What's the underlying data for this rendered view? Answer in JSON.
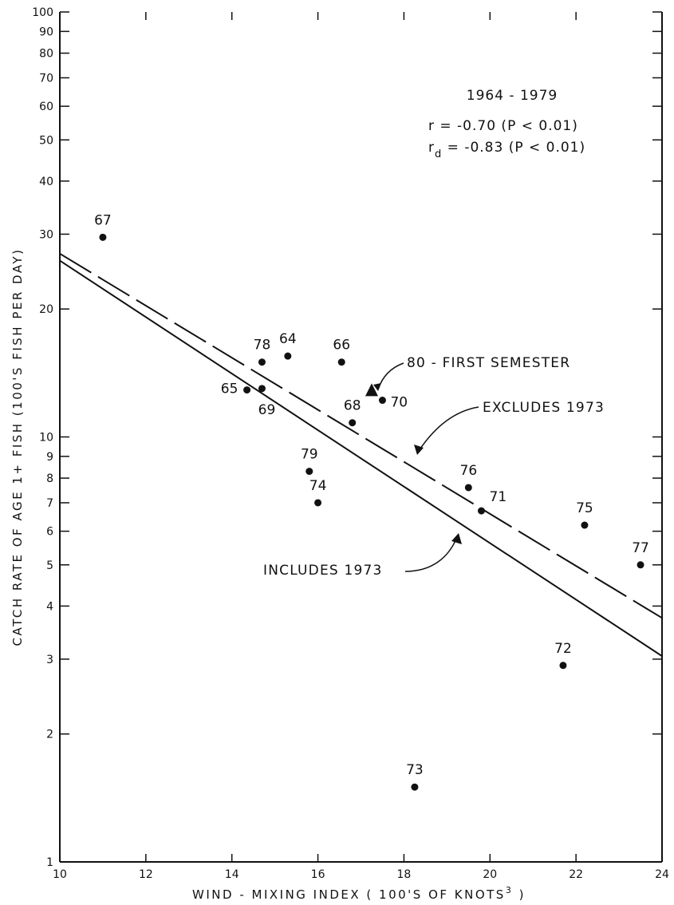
{
  "chart_data": {
    "type": "scatter",
    "title": "1964 - 1979",
    "stats": {
      "r": "r = -0.70  (P < 0.01)",
      "rd_prefix": "r",
      "rd_sub": "d",
      "rd_rest": " = -0.83  (P < 0.01)"
    },
    "xlabel": "WIND - MIXING INDEX  ( 100'S  OF  KNOTS",
    "xlabel_sup": "3",
    "xlabel_end": " )",
    "ylabel": "CATCH  RATE  OF  AGE  1+ FISH   (100'S FISH PER DAY)",
    "xlim": [
      10,
      24
    ],
    "ylim": [
      1,
      100
    ],
    "y_scale": "log",
    "x_ticks": [
      "10",
      "12",
      "14",
      "16",
      "18",
      "20",
      "22",
      "24"
    ],
    "y_ticks": [
      "1",
      "2",
      "3",
      "4",
      "5",
      "6",
      "7",
      "8",
      "9",
      "10",
      "20",
      "30",
      "40",
      "50",
      "60",
      "70",
      "80",
      "90",
      "100"
    ],
    "points": [
      {
        "label": "67",
        "x": 11.0,
        "y": 29.5
      },
      {
        "label": "78",
        "x": 14.7,
        "y": 15.0
      },
      {
        "label": "64",
        "x": 15.3,
        "y": 15.5
      },
      {
        "label": "66",
        "x": 16.55,
        "y": 15.0
      },
      {
        "label": "65",
        "x": 14.35,
        "y": 12.9
      },
      {
        "label": "69",
        "x": 14.7,
        "y": 13.0
      },
      {
        "label": "68",
        "x": 16.8,
        "y": 10.8
      },
      {
        "label": "70",
        "x": 17.5,
        "y": 12.2
      },
      {
        "label": "79",
        "x": 15.8,
        "y": 8.3
      },
      {
        "label": "74",
        "x": 16.0,
        "y": 7.0
      },
      {
        "label": "76",
        "x": 19.5,
        "y": 7.6
      },
      {
        "label": "71",
        "x": 19.8,
        "y": 6.7
      },
      {
        "label": "75",
        "x": 22.2,
        "y": 6.2
      },
      {
        "label": "77",
        "x": 23.5,
        "y": 5.0
      },
      {
        "label": "72",
        "x": 21.7,
        "y": 2.9
      },
      {
        "label": "73",
        "x": 18.25,
        "y": 1.5
      }
    ],
    "special_point": {
      "x": 17.25,
      "y": 12.8,
      "marker": "triangle"
    },
    "lines": [
      {
        "name": "EXCLUDES 1973",
        "style": "dashed",
        "x": [
          10,
          24
        ],
        "y": [
          27.0,
          3.75
        ]
      },
      {
        "name": "INCLUDES 1973",
        "style": "solid",
        "x": [
          10,
          24
        ],
        "y": [
          26.0,
          3.05
        ]
      }
    ],
    "annotations": {
      "first_semester": "80 - FIRST  SEMESTER",
      "excludes": "EXCLUDES  1973",
      "includes": "INCLUDES  1973"
    },
    "grid": false,
    "legend": "none"
  }
}
